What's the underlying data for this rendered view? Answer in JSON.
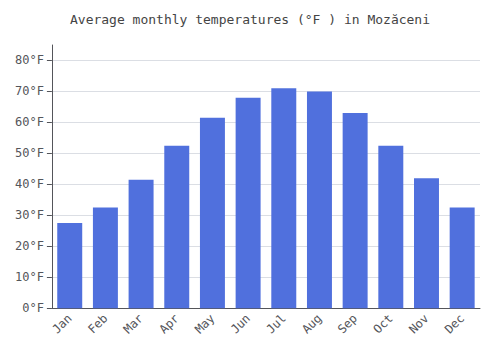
{
  "chart_data": {
    "type": "bar",
    "title": "Average monthly temperatures (°F ) in Mozăceni",
    "categories": [
      "Jan",
      "Feb",
      "Mar",
      "Apr",
      "May",
      "Jun",
      "Jul",
      "Aug",
      "Sep",
      "Oct",
      "Nov",
      "Dec"
    ],
    "values": [
      27.5,
      32.5,
      41.5,
      52.5,
      61.5,
      68.0,
      71.0,
      70.0,
      63.0,
      52.5,
      42.0,
      32.5
    ],
    "ylim": [
      0,
      85
    ],
    "yticks": [
      {
        "value": 0,
        "label": "0°F"
      },
      {
        "value": 10,
        "label": "10°F"
      },
      {
        "value": 20,
        "label": "20°F"
      },
      {
        "value": 30,
        "label": "30°F"
      },
      {
        "value": 40,
        "label": "40°F"
      },
      {
        "value": 50,
        "label": "50°F"
      },
      {
        "value": 60,
        "label": "60°F"
      },
      {
        "value": 70,
        "label": "70°F"
      },
      {
        "value": 80,
        "label": "80°F"
      }
    ],
    "grid": true
  }
}
